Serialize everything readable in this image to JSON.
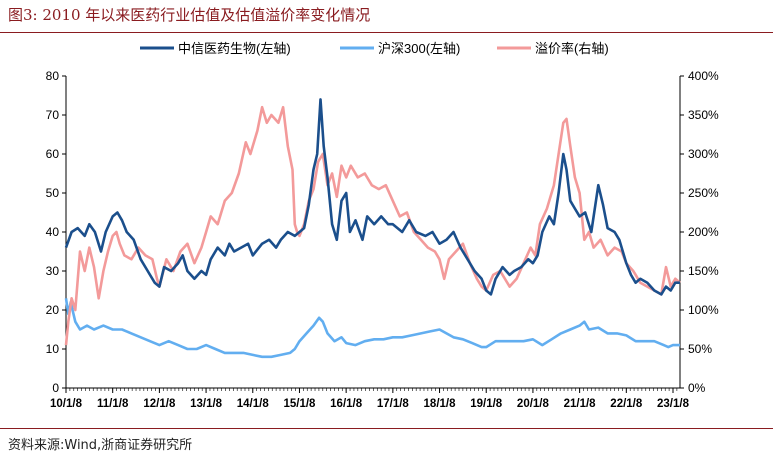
{
  "figure": {
    "title": "图3:    2010 年以来医药行业估值及估值溢价率变化情况",
    "source": "资料来源:Wind,浙商证券研究所"
  },
  "chart_data": {
    "type": "line",
    "title": "",
    "xlabel": "",
    "ylabel": "",
    "y_left_ticks": [
      "0",
      "10",
      "20",
      "30",
      "40",
      "50",
      "60",
      "70",
      "80"
    ],
    "y_right_ticks": [
      "0%",
      "50%",
      "100%",
      "150%",
      "200%",
      "250%",
      "300%",
      "350%",
      "400%"
    ],
    "ylim_left": [
      0,
      80
    ],
    "ylim_right": [
      0,
      400
    ],
    "x_tick_labels": [
      "10/1/8",
      "11/1/8",
      "12/1/8",
      "13/1/8",
      "14/1/8",
      "15/1/8",
      "16/1/8",
      "17/1/8",
      "18/1/8",
      "19/1/8",
      "20/1/8",
      "21/1/8",
      "22/1/8",
      "23/1/8"
    ],
    "xlim": [
      2010.0,
      2023.15
    ],
    "legend_position": "top",
    "grid": false,
    "series": [
      {
        "name": "中信医药生物(左轴)",
        "axis": "left",
        "color": "#1b4f8c",
        "points": [
          [
            2010.0,
            36
          ],
          [
            2010.12,
            40
          ],
          [
            2010.25,
            41
          ],
          [
            2010.4,
            39
          ],
          [
            2010.5,
            42
          ],
          [
            2010.62,
            40
          ],
          [
            2010.75,
            35
          ],
          [
            2010.85,
            40
          ],
          [
            2011.0,
            44
          ],
          [
            2011.1,
            45
          ],
          [
            2011.2,
            43
          ],
          [
            2011.3,
            40
          ],
          [
            2011.45,
            38
          ],
          [
            2011.6,
            33
          ],
          [
            2011.75,
            30
          ],
          [
            2011.9,
            27
          ],
          [
            2012.0,
            26
          ],
          [
            2012.1,
            31
          ],
          [
            2012.25,
            30
          ],
          [
            2012.4,
            32
          ],
          [
            2012.5,
            34
          ],
          [
            2012.6,
            30
          ],
          [
            2012.75,
            28
          ],
          [
            2012.9,
            30
          ],
          [
            2013.0,
            29
          ],
          [
            2013.1,
            33
          ],
          [
            2013.25,
            36
          ],
          [
            2013.4,
            34
          ],
          [
            2013.5,
            37
          ],
          [
            2013.6,
            35
          ],
          [
            2013.75,
            36
          ],
          [
            2013.9,
            37
          ],
          [
            2014.0,
            34
          ],
          [
            2014.2,
            37
          ],
          [
            2014.35,
            38
          ],
          [
            2014.5,
            36
          ],
          [
            2014.6,
            38
          ],
          [
            2014.75,
            40
          ],
          [
            2014.9,
            39
          ],
          [
            2015.0,
            40
          ],
          [
            2015.1,
            41
          ],
          [
            2015.2,
            47
          ],
          [
            2015.3,
            56
          ],
          [
            2015.38,
            60
          ],
          [
            2015.45,
            74
          ],
          [
            2015.52,
            62
          ],
          [
            2015.6,
            54
          ],
          [
            2015.7,
            42
          ],
          [
            2015.8,
            38
          ],
          [
            2015.9,
            48
          ],
          [
            2016.0,
            50
          ],
          [
            2016.08,
            40
          ],
          [
            2016.2,
            43
          ],
          [
            2016.35,
            38
          ],
          [
            2016.45,
            44
          ],
          [
            2016.6,
            42
          ],
          [
            2016.75,
            44
          ],
          [
            2016.9,
            42
          ],
          [
            2017.0,
            42
          ],
          [
            2017.2,
            40
          ],
          [
            2017.35,
            43
          ],
          [
            2017.5,
            40
          ],
          [
            2017.7,
            39
          ],
          [
            2017.85,
            40
          ],
          [
            2018.0,
            37
          ],
          [
            2018.15,
            38
          ],
          [
            2018.3,
            40
          ],
          [
            2018.45,
            36
          ],
          [
            2018.6,
            33
          ],
          [
            2018.75,
            30
          ],
          [
            2018.9,
            28
          ],
          [
            2019.0,
            25
          ],
          [
            2019.1,
            24
          ],
          [
            2019.2,
            28
          ],
          [
            2019.35,
            31
          ],
          [
            2019.5,
            29
          ],
          [
            2019.6,
            30
          ],
          [
            2019.75,
            31
          ],
          [
            2019.9,
            33
          ],
          [
            2020.0,
            32
          ],
          [
            2020.1,
            34
          ],
          [
            2020.2,
            40
          ],
          [
            2020.35,
            44
          ],
          [
            2020.45,
            42
          ],
          [
            2020.55,
            50
          ],
          [
            2020.65,
            60
          ],
          [
            2020.72,
            56
          ],
          [
            2020.8,
            48
          ],
          [
            2020.9,
            46
          ],
          [
            2021.0,
            44
          ],
          [
            2021.12,
            45
          ],
          [
            2021.25,
            40
          ],
          [
            2021.4,
            52
          ],
          [
            2021.5,
            47
          ],
          [
            2021.6,
            41
          ],
          [
            2021.75,
            40
          ],
          [
            2021.85,
            38
          ],
          [
            2022.0,
            32
          ],
          [
            2022.1,
            29
          ],
          [
            2022.2,
            27
          ],
          [
            2022.3,
            28
          ],
          [
            2022.45,
            27
          ],
          [
            2022.6,
            25
          ],
          [
            2022.75,
            24
          ],
          [
            2022.85,
            26
          ],
          [
            2022.95,
            25
          ],
          [
            2023.05,
            27
          ],
          [
            2023.15,
            27
          ]
        ]
      },
      {
        "name": "沪深300(左轴)",
        "axis": "left",
        "color": "#62aef0",
        "points": [
          [
            2010.0,
            23
          ],
          [
            2010.05,
            19
          ],
          [
            2010.1,
            22
          ],
          [
            2010.2,
            17
          ],
          [
            2010.3,
            15
          ],
          [
            2010.45,
            16
          ],
          [
            2010.6,
            15
          ],
          [
            2010.8,
            16
          ],
          [
            2011.0,
            15
          ],
          [
            2011.2,
            15
          ],
          [
            2011.4,
            14
          ],
          [
            2011.6,
            13
          ],
          [
            2011.8,
            12
          ],
          [
            2012.0,
            11
          ],
          [
            2012.2,
            12
          ],
          [
            2012.4,
            11
          ],
          [
            2012.6,
            10
          ],
          [
            2012.8,
            10
          ],
          [
            2013.0,
            11
          ],
          [
            2013.2,
            10
          ],
          [
            2013.4,
            9
          ],
          [
            2013.6,
            9
          ],
          [
            2013.8,
            9
          ],
          [
            2014.0,
            8.5
          ],
          [
            2014.2,
            8
          ],
          [
            2014.4,
            8
          ],
          [
            2014.6,
            8.5
          ],
          [
            2014.8,
            9
          ],
          [
            2014.9,
            10
          ],
          [
            2015.0,
            12
          ],
          [
            2015.15,
            14
          ],
          [
            2015.3,
            16
          ],
          [
            2015.42,
            18
          ],
          [
            2015.5,
            17
          ],
          [
            2015.6,
            14
          ],
          [
            2015.75,
            12
          ],
          [
            2015.9,
            13
          ],
          [
            2016.0,
            11.5
          ],
          [
            2016.2,
            11
          ],
          [
            2016.4,
            12
          ],
          [
            2016.6,
            12.5
          ],
          [
            2016.8,
            12.5
          ],
          [
            2017.0,
            13
          ],
          [
            2017.2,
            13
          ],
          [
            2017.4,
            13.5
          ],
          [
            2017.6,
            14
          ],
          [
            2017.8,
            14.5
          ],
          [
            2018.0,
            15
          ],
          [
            2018.15,
            14
          ],
          [
            2018.3,
            13
          ],
          [
            2018.5,
            12.5
          ],
          [
            2018.7,
            11.5
          ],
          [
            2018.9,
            10.5
          ],
          [
            2019.0,
            10.5
          ],
          [
            2019.2,
            12
          ],
          [
            2019.4,
            12
          ],
          [
            2019.6,
            12
          ],
          [
            2019.8,
            12
          ],
          [
            2020.0,
            12.5
          ],
          [
            2020.2,
            11
          ],
          [
            2020.4,
            12.5
          ],
          [
            2020.6,
            14
          ],
          [
            2020.8,
            15
          ],
          [
            2021.0,
            16
          ],
          [
            2021.1,
            17
          ],
          [
            2021.2,
            15
          ],
          [
            2021.4,
            15.5
          ],
          [
            2021.6,
            14
          ],
          [
            2021.8,
            14
          ],
          [
            2022.0,
            13.5
          ],
          [
            2022.2,
            12
          ],
          [
            2022.4,
            12
          ],
          [
            2022.6,
            12
          ],
          [
            2022.8,
            11
          ],
          [
            2022.9,
            10.5
          ],
          [
            2023.0,
            11
          ],
          [
            2023.15,
            11
          ]
        ]
      },
      {
        "name": "溢价率(右轴)",
        "axis": "right",
        "color": "#f39a9a",
        "points": [
          [
            2010.0,
            55
          ],
          [
            2010.05,
            85
          ],
          [
            2010.12,
            115
          ],
          [
            2010.2,
            100
          ],
          [
            2010.3,
            175
          ],
          [
            2010.4,
            150
          ],
          [
            2010.5,
            180
          ],
          [
            2010.6,
            155
          ],
          [
            2010.7,
            115
          ],
          [
            2010.8,
            150
          ],
          [
            2010.9,
            175
          ],
          [
            2011.0,
            195
          ],
          [
            2011.08,
            200
          ],
          [
            2011.15,
            185
          ],
          [
            2011.25,
            170
          ],
          [
            2011.4,
            165
          ],
          [
            2011.55,
            180
          ],
          [
            2011.7,
            170
          ],
          [
            2011.85,
            165
          ],
          [
            2011.95,
            140
          ],
          [
            2012.0,
            130
          ],
          [
            2012.15,
            165
          ],
          [
            2012.3,
            150
          ],
          [
            2012.45,
            175
          ],
          [
            2012.6,
            185
          ],
          [
            2012.75,
            160
          ],
          [
            2012.9,
            180
          ],
          [
            2013.0,
            200
          ],
          [
            2013.1,
            220
          ],
          [
            2013.25,
            210
          ],
          [
            2013.4,
            240
          ],
          [
            2013.55,
            250
          ],
          [
            2013.7,
            275
          ],
          [
            2013.85,
            315
          ],
          [
            2013.95,
            300
          ],
          [
            2014.1,
            330
          ],
          [
            2014.2,
            360
          ],
          [
            2014.3,
            340
          ],
          [
            2014.4,
            350
          ],
          [
            2014.55,
            340
          ],
          [
            2014.65,
            360
          ],
          [
            2014.75,
            310
          ],
          [
            2014.85,
            280
          ],
          [
            2014.9,
            210
          ],
          [
            2014.95,
            200
          ],
          [
            2015.0,
            195
          ],
          [
            2015.1,
            210
          ],
          [
            2015.2,
            240
          ],
          [
            2015.3,
            255
          ],
          [
            2015.4,
            290
          ],
          [
            2015.5,
            300
          ],
          [
            2015.6,
            260
          ],
          [
            2015.7,
            275
          ],
          [
            2015.8,
            245
          ],
          [
            2015.9,
            285
          ],
          [
            2016.0,
            270
          ],
          [
            2016.1,
            285
          ],
          [
            2016.25,
            270
          ],
          [
            2016.4,
            275
          ],
          [
            2016.55,
            260
          ],
          [
            2016.7,
            255
          ],
          [
            2016.85,
            260
          ],
          [
            2017.0,
            240
          ],
          [
            2017.15,
            220
          ],
          [
            2017.3,
            225
          ],
          [
            2017.45,
            200
          ],
          [
            2017.6,
            190
          ],
          [
            2017.75,
            180
          ],
          [
            2017.9,
            175
          ],
          [
            2018.0,
            165
          ],
          [
            2018.1,
            140
          ],
          [
            2018.2,
            165
          ],
          [
            2018.35,
            175
          ],
          [
            2018.5,
            185
          ],
          [
            2018.65,
            160
          ],
          [
            2018.8,
            140
          ],
          [
            2018.9,
            130
          ],
          [
            2019.0,
            125
          ],
          [
            2019.15,
            145
          ],
          [
            2019.3,
            150
          ],
          [
            2019.5,
            130
          ],
          [
            2019.65,
            140
          ],
          [
            2019.8,
            160
          ],
          [
            2019.95,
            180
          ],
          [
            2020.05,
            170
          ],
          [
            2020.15,
            210
          ],
          [
            2020.3,
            230
          ],
          [
            2020.45,
            260
          ],
          [
            2020.55,
            300
          ],
          [
            2020.65,
            340
          ],
          [
            2020.72,
            345
          ],
          [
            2020.8,
            310
          ],
          [
            2020.9,
            270
          ],
          [
            2021.0,
            250
          ],
          [
            2021.1,
            190
          ],
          [
            2021.2,
            200
          ],
          [
            2021.3,
            180
          ],
          [
            2021.45,
            190
          ],
          [
            2021.6,
            170
          ],
          [
            2021.75,
            180
          ],
          [
            2021.9,
            175
          ],
          [
            2022.0,
            160
          ],
          [
            2022.15,
            150
          ],
          [
            2022.3,
            135
          ],
          [
            2022.45,
            130
          ],
          [
            2022.6,
            125
          ],
          [
            2022.75,
            120
          ],
          [
            2022.85,
            155
          ],
          [
            2022.95,
            130
          ],
          [
            2023.05,
            140
          ],
          [
            2023.15,
            135
          ]
        ]
      }
    ]
  }
}
